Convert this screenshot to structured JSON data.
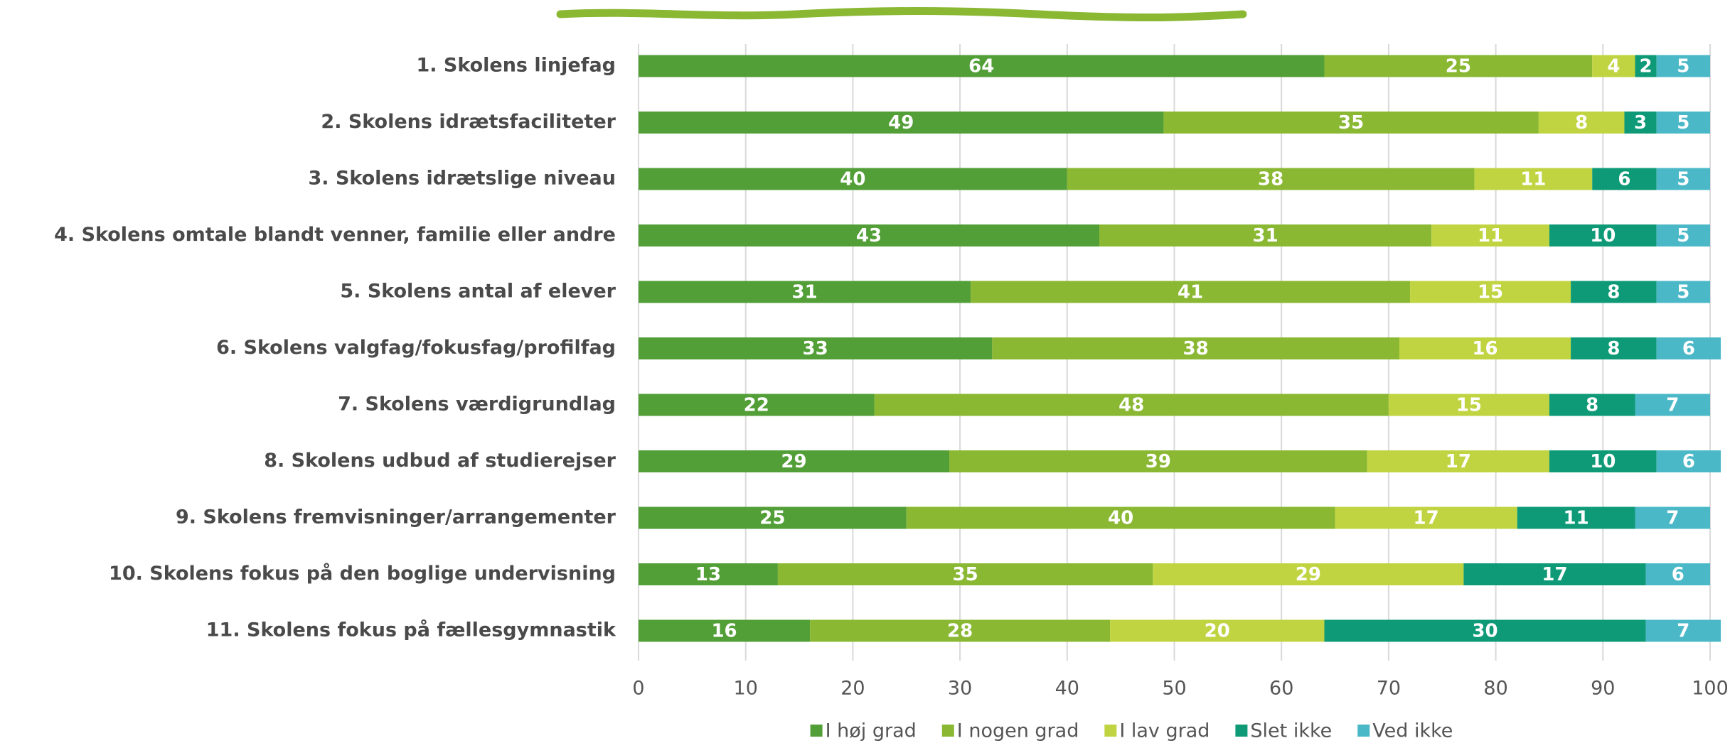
{
  "chart_data": {
    "type": "stacked-bar-horizontal",
    "categories": [
      "1. Skolens linjefag",
      "2. Skolens idrætsfaciliteter",
      "3. Skolens idrætslige niveau",
      "4. Skolens omtale blandt venner, familie eller andre",
      "5. Skolens antal af elever",
      "6. Skolens valgfag/fokusfag/profilfag",
      "7. Skolens værdigrundlag",
      "8. Skolens udbud af studierejser",
      "9. Skolens fremvisninger/arrangementer",
      "10. Skolens fokus på den boglige undervisning",
      "11. Skolens fokus på fællesgymnastik"
    ],
    "series": [
      {
        "name": "I høj grad",
        "color": "#529e37",
        "values": [
          64,
          49,
          40,
          43,
          31,
          33,
          22,
          29,
          25,
          13,
          16
        ]
      },
      {
        "name": "I nogen grad",
        "color": "#8ab833",
        "values": [
          25,
          35,
          38,
          31,
          41,
          38,
          48,
          39,
          40,
          35,
          28
        ]
      },
      {
        "name": "I lav grad",
        "color": "#c0d442",
        "values": [
          4,
          8,
          11,
          11,
          15,
          16,
          15,
          17,
          17,
          29,
          20
        ]
      },
      {
        "name": "Slet ikke",
        "color": "#0e9a77",
        "values": [
          2,
          3,
          6,
          10,
          8,
          8,
          8,
          10,
          11,
          17,
          30
        ]
      },
      {
        "name": "Ved ikke",
        "color": "#4bb8c8",
        "values": [
          5,
          5,
          5,
          5,
          5,
          6,
          7,
          6,
          7,
          6,
          7
        ]
      }
    ],
    "xlim": [
      0,
      100
    ],
    "xticks": [
      0,
      10,
      20,
      30,
      40,
      50,
      60,
      70,
      80,
      90,
      100
    ],
    "grid": true,
    "legend": "bottom"
  }
}
